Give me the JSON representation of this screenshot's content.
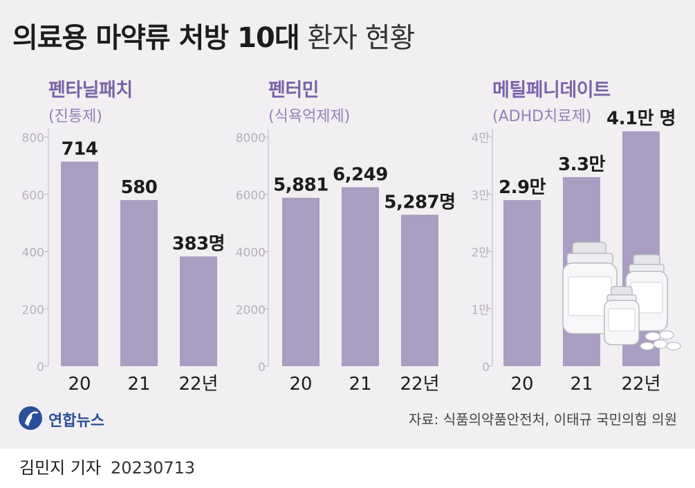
{
  "title": {
    "main": "의료용 마약류 처방 10대",
    "sub": "환자 현황"
  },
  "colors": {
    "bar": "#a99dc1",
    "title_accent": "#7a63a9",
    "background": "#f1eff1",
    "logo": "#2a4f99"
  },
  "chart_data": [
    {
      "type": "bar",
      "title": "펜타닐패치",
      "subtitle": "(진통제)",
      "categories": [
        "20",
        "21",
        "22년"
      ],
      "values": [
        714,
        580,
        383
      ],
      "value_labels": [
        "714",
        "580",
        "383명"
      ],
      "yticks": [
        "0",
        "200",
        "400",
        "600",
        "800"
      ],
      "ylim": [
        0,
        800
      ],
      "grid": false
    },
    {
      "type": "bar",
      "title": "펜터민",
      "subtitle": "(식욕억제제)",
      "categories": [
        "20",
        "21",
        "22년"
      ],
      "values": [
        5881,
        6249,
        5287
      ],
      "value_labels": [
        "5,881",
        "6,249",
        "5,287명"
      ],
      "yticks": [
        "0",
        "2000",
        "4000",
        "6000",
        "8000"
      ],
      "ylim": [
        0,
        8000
      ],
      "grid": false
    },
    {
      "type": "bar",
      "title": "메틸페니데이트",
      "subtitle": "(ADHD치료제)",
      "categories": [
        "20",
        "21",
        "22년"
      ],
      "values": [
        29000,
        33000,
        41000
      ],
      "value_labels": [
        "2.9만",
        "3.3만",
        "4.1만 명"
      ],
      "yticks": [
        "0",
        "1만",
        "2만",
        "3만",
        "4만"
      ],
      "ylim": [
        0,
        40000
      ],
      "grid": false
    }
  ],
  "logo": {
    "text": "연합뉴스",
    "icon": "yonhap-logo-icon"
  },
  "source": "자료: 식품의약품안전처, 이태규 국민의힘 의원",
  "byline": {
    "reporter": "김민지 기자",
    "date": "20230713"
  }
}
